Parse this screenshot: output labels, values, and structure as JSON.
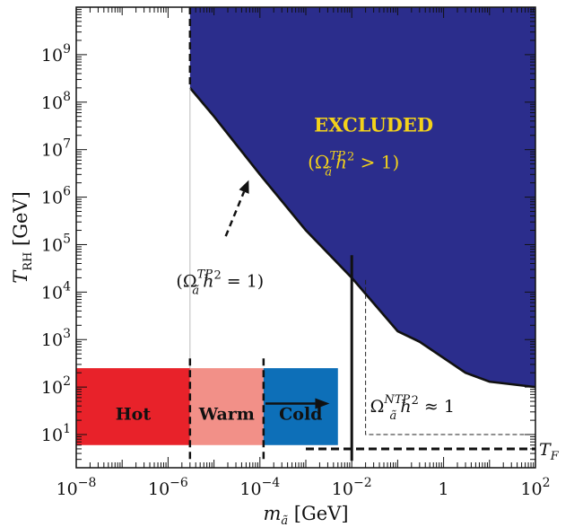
{
  "chart_data": {
    "type": "area",
    "x_scale": "log",
    "y_scale": "log",
    "xlim": [
      1e-08,
      100
    ],
    "ylim": [
      2,
      10000000000.0
    ],
    "xlabel": "m",
    "xlabel_sub": "ã",
    "xlabel_unit": "[GeV]",
    "ylabel": "T",
    "ylabel_sub": "RH",
    "ylabel_unit": "[GeV]",
    "x_ticks": [
      {
        "value": 1e-08,
        "base": "10",
        "exp": "−8"
      },
      {
        "value": 1e-06,
        "base": "10",
        "exp": "−6"
      },
      {
        "value": 0.0001,
        "base": "10",
        "exp": "−4"
      },
      {
        "value": 0.01,
        "base": "10",
        "exp": "−2"
      },
      {
        "value": 1,
        "base": "1",
        "exp": ""
      },
      {
        "value": 100,
        "base": "10",
        "exp": "2"
      }
    ],
    "y_ticks": [
      {
        "value": 10.0,
        "base": "10",
        "exp": "1"
      },
      {
        "value": 100.0,
        "base": "10",
        "exp": "2"
      },
      {
        "value": 1000.0,
        "base": "10",
        "exp": "3"
      },
      {
        "value": 10000.0,
        "base": "10",
        "exp": "4"
      },
      {
        "value": 100000.0,
        "base": "10",
        "exp": "5"
      },
      {
        "value": 1000000.0,
        "base": "10",
        "exp": "6"
      },
      {
        "value": 10000000.0,
        "base": "10",
        "exp": "7"
      },
      {
        "value": 100000000.0,
        "base": "10",
        "exp": "8"
      },
      {
        "value": 1000000000.0,
        "base": "10",
        "exp": "9"
      }
    ],
    "excluded_boundary": [
      [
        3e-06,
        200000000.0
      ],
      [
        1e-05,
        50000000.0
      ],
      [
        0.0001,
        3000000.0
      ],
      [
        0.001,
        200000.0
      ],
      [
        0.01,
        20000.0
      ],
      [
        0.1,
        1500.0
      ],
      [
        0.3,
        900
      ],
      [
        3,
        200
      ],
      [
        10,
        130
      ],
      [
        100,
        100
      ]
    ],
    "excluded_color": "#2b2d8c",
    "excluded_label": "EXCLUDED",
    "excluded_condition": {
      "lhs": "(Ω",
      "sub": "ã",
      "sup": "TP",
      "rhs": "h",
      "rhs_sup": "2",
      "tail": " > 1)"
    },
    "tp_condition": {
      "lhs": "(Ω",
      "sub": "ã",
      "sup": "TP",
      "rhs": "h",
      "rhs_sup": "2",
      "tail": " = 1)"
    },
    "ntp_condition": {
      "lhs": "Ω",
      "sub": "ã",
      "sup": "NTP",
      "rhs": "h",
      "rhs_sup": "2",
      "tail": " ≈ 1"
    },
    "tf_label": {
      "base": "T",
      "sub": "F"
    },
    "tf_value": 5,
    "hot_warm_boundary": 3e-06,
    "warm_cold_boundary": 0.00012,
    "ntp_mass": 0.01,
    "ntp_dashed_corner": [
      0.02,
      10
    ],
    "hdm_band": {
      "x_from": 1e-08,
      "x_to": 0.005,
      "y_from": 6,
      "y_to": 250
    },
    "regions": [
      {
        "label": "Hot",
        "color": "#e8222a",
        "x_from": 1e-08,
        "x_to": 3e-06
      },
      {
        "label": "Warm",
        "color": "#f29088",
        "x_from": 3e-06,
        "x_to": 0.00012
      },
      {
        "label": "Cold",
        "color": "#0d6fb8",
        "x_from": 0.00012,
        "x_to": 0.005
      }
    ],
    "grid": false,
    "legend": "none"
  }
}
